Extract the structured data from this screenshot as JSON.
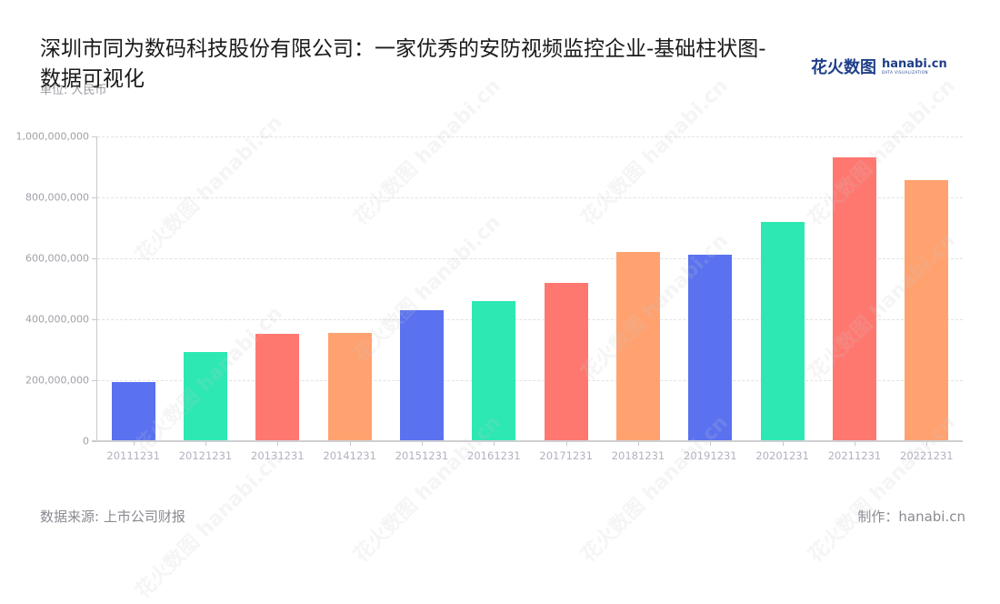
{
  "header": {
    "title": "深圳市同为数码科技股份有限公司：一家优秀的安防视频监控企业-基础柱状图-数据可视化",
    "unit_label": "单位: 人民币",
    "logo": {
      "cn": "花火数图",
      "en": "hanabi.cn",
      "sub": "DATA VISUALIZATION"
    }
  },
  "footer": {
    "source": "数据来源: 上市公司财报",
    "credit": "制作：hanabi.cn"
  },
  "watermark_text": "花火数图 hanabi.cn",
  "colors": {
    "blue": "#5a72ef",
    "green": "#2de8b3",
    "red": "#ff7870",
    "orange": "#ffa270"
  },
  "chart_data": {
    "type": "bar",
    "title": "深圳市同为数码科技股份有限公司：一家优秀的安防视频监控企业-基础柱状图-数据可视化",
    "xlabel": "",
    "ylabel": "单位: 人民币",
    "ylim": [
      0,
      1000000000
    ],
    "yticks": [
      "0",
      "200,000,000",
      "400,000,000",
      "600,000,000",
      "800,000,000",
      "1,000,000,000"
    ],
    "ytick_values": [
      0,
      200000000,
      400000000,
      600000000,
      800000000,
      1000000000
    ],
    "grid": true,
    "legend": null,
    "categories": [
      "20111231",
      "20121231",
      "20131231",
      "20141231",
      "20151231",
      "20161231",
      "20171231",
      "20181231",
      "20191231",
      "20201231",
      "20211231",
      "20221231"
    ],
    "values": [
      193000000,
      290000000,
      352000000,
      355000000,
      430000000,
      458000000,
      519000000,
      619000000,
      610000000,
      719000000,
      931000000,
      856000000
    ],
    "bar_colors": [
      "#5a72ef",
      "#2de8b3",
      "#ff7870",
      "#ffa270",
      "#5a72ef",
      "#2de8b3",
      "#ff7870",
      "#ffa270",
      "#5a72ef",
      "#2de8b3",
      "#ff7870",
      "#ffa270"
    ]
  }
}
